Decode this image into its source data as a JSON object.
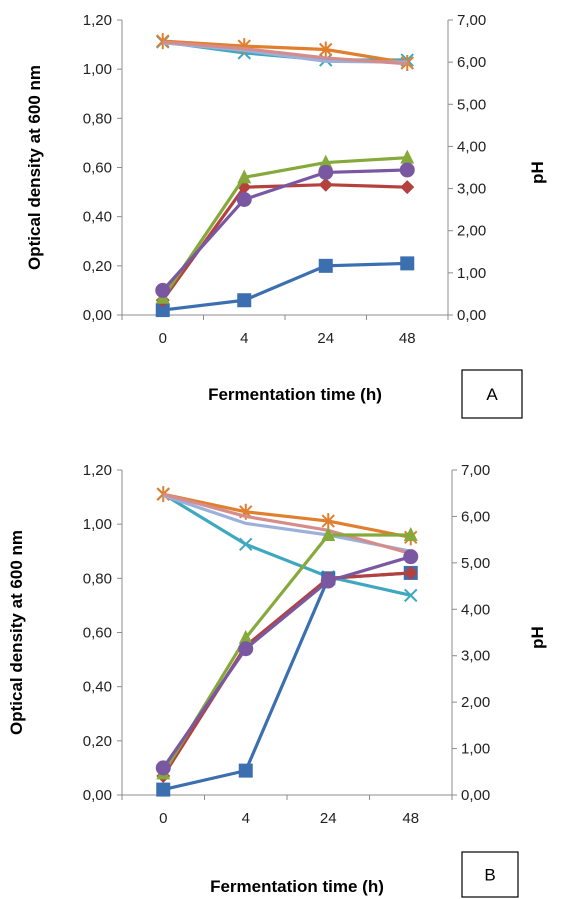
{
  "chart_data": [
    {
      "type": "line",
      "panel_label": "A",
      "categories": [
        "0",
        "4",
        "24",
        "48"
      ],
      "xlabel": "Fermentation time (h)",
      "ylabel": "Optical density  at 600 nm",
      "y2label": "pH",
      "ylim": [
        0,
        1.2
      ],
      "y2lim": [
        0,
        7
      ],
      "yticks": [
        "0,00",
        "0,20",
        "0,40",
        "0,60",
        "0,80",
        "1,00",
        "1,20"
      ],
      "y2ticks": [
        "0,00",
        "1,00",
        "2,00",
        "3,00",
        "4,00",
        "5,00",
        "6,00",
        "7,00"
      ],
      "grid": false,
      "series": [
        {
          "axis": "left",
          "marker": "square",
          "color": "#3B6FB0",
          "values": [
            0.02,
            0.06,
            0.2,
            0.21
          ]
        },
        {
          "axis": "left",
          "marker": "diamond",
          "color": "#B5413E",
          "values": [
            0.06,
            0.52,
            0.53,
            0.52
          ]
        },
        {
          "axis": "left",
          "marker": "triangle",
          "color": "#86A93C",
          "values": [
            0.07,
            0.56,
            0.62,
            0.64
          ]
        },
        {
          "axis": "left",
          "marker": "circle",
          "color": "#7A58A1",
          "values": [
            0.1,
            0.47,
            0.58,
            0.59
          ]
        },
        {
          "axis": "right",
          "marker": "x",
          "color": "#3FA8C0",
          "values": [
            6.48,
            6.22,
            6.05,
            6.05
          ]
        },
        {
          "axis": "right",
          "marker": "star",
          "color": "#E07F2E",
          "values": [
            6.5,
            6.38,
            6.3,
            5.98
          ]
        },
        {
          "axis": "right",
          "marker": "line",
          "color": "#9BB0DA",
          "values": [
            6.46,
            6.28,
            6.02,
            6.0
          ]
        },
        {
          "axis": "right",
          "marker": "line",
          "color": "#D68C8A",
          "values": [
            6.48,
            6.32,
            6.1,
            5.96
          ]
        }
      ]
    },
    {
      "type": "line",
      "panel_label": "B",
      "categories": [
        "0",
        "4",
        "24",
        "48"
      ],
      "xlabel": "Fermentation time (h)",
      "ylabel": "Optical density at 600 nm",
      "y2label": "pH",
      "ylim": [
        0,
        1.2
      ],
      "y2lim": [
        0,
        7
      ],
      "yticks": [
        "0,00",
        "0,20",
        "0,40",
        "0,60",
        "0,80",
        "1,00",
        "1,20"
      ],
      "y2ticks": [
        "0,00",
        "1,00",
        "2,00",
        "3,00",
        "4,00",
        "5,00",
        "6,00",
        "7,00"
      ],
      "grid": false,
      "series": [
        {
          "axis": "left",
          "marker": "square",
          "color": "#3B6FB0",
          "values": [
            0.02,
            0.09,
            0.8,
            0.82
          ]
        },
        {
          "axis": "left",
          "marker": "diamond",
          "color": "#B5413E",
          "values": [
            0.07,
            0.55,
            0.8,
            0.82
          ]
        },
        {
          "axis": "left",
          "marker": "triangle",
          "color": "#86A93C",
          "values": [
            0.08,
            0.58,
            0.96,
            0.96
          ]
        },
        {
          "axis": "left",
          "marker": "circle",
          "color": "#7A58A1",
          "values": [
            0.1,
            0.54,
            0.79,
            0.88
          ]
        },
        {
          "axis": "right",
          "marker": "x",
          "color": "#3FA8C0",
          "values": [
            6.48,
            5.4,
            4.7,
            4.3
          ]
        },
        {
          "axis": "right",
          "marker": "star",
          "color": "#E07F2E",
          "values": [
            6.48,
            6.1,
            5.9,
            5.55
          ]
        },
        {
          "axis": "right",
          "marker": "line",
          "color": "#9BB0DA",
          "values": [
            6.45,
            5.85,
            5.6,
            5.25
          ]
        },
        {
          "axis": "right",
          "marker": "line",
          "color": "#D68C8A",
          "values": [
            6.48,
            6.0,
            5.7,
            5.2
          ]
        }
      ]
    }
  ]
}
